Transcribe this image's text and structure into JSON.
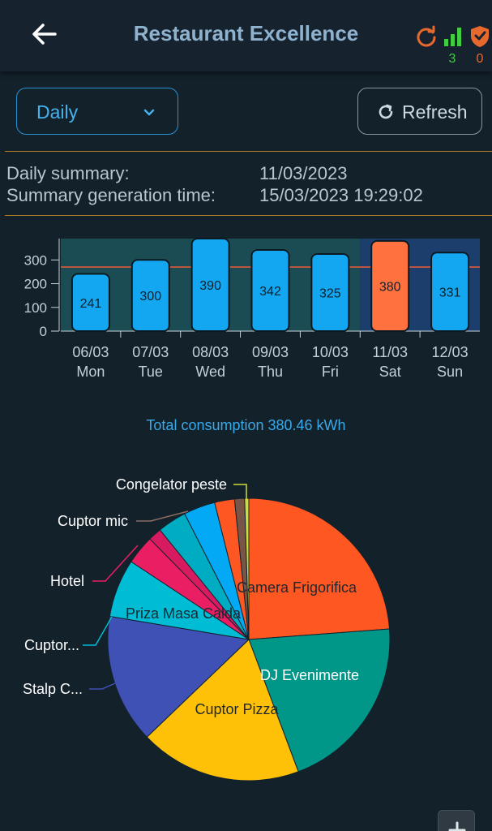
{
  "header": {
    "title": "Restaurant Excellence",
    "back_icon": "arrow-left-icon",
    "status": [
      {
        "icon": "sync-icon",
        "color": "#e8692e",
        "count": ""
      },
      {
        "icon": "signal-bars-icon",
        "color": "#3fcf3f",
        "count": "3"
      },
      {
        "icon": "shield-alert-icon",
        "color": "#e8692e",
        "count": "0"
      }
    ]
  },
  "controls": {
    "period_select": "Daily",
    "refresh_label": "Refresh"
  },
  "summary": {
    "daily_summary_label": "Daily summary:",
    "daily_summary_value": "11/03/2023",
    "generation_label": "Summary generation time:",
    "generation_value": "15/03/2023 19:29:02"
  },
  "total_consumption": "Total consumption 380.46 kWh",
  "colors": {
    "bar": "#13a7f2",
    "bar_selected": "#ff7240",
    "average_line": "#e05a3a"
  },
  "chart_data": [
    {
      "type": "bar",
      "categories": [
        "06/03 Mon",
        "07/03 Tue",
        "08/03 Wed",
        "09/03 Thu",
        "10/03 Fri",
        "11/03 Sat",
        "12/03 Sun"
      ],
      "dates": [
        "06/03",
        "07/03",
        "08/03",
        "09/03",
        "10/03",
        "11/03",
        "12/03"
      ],
      "days": [
        "Mon",
        "Tue",
        "Wed",
        "Thu",
        "Fri",
        "Sat",
        "Sun"
      ],
      "values": [
        241,
        300,
        390,
        342,
        325,
        380,
        331
      ],
      "data_labels": [
        "241",
        "300",
        "390",
        "342",
        "325",
        "380",
        "331"
      ],
      "selected_index": 5,
      "average_line": 270,
      "ylim": [
        0,
        390
      ],
      "yticks": [
        0,
        100,
        200,
        300
      ],
      "ytick_labels": [
        "0",
        "100",
        "200",
        "300"
      ],
      "title": "",
      "xlabel": "",
      "ylabel": ""
    },
    {
      "type": "pie",
      "slices": [
        {
          "label": "Camera Frigorifica",
          "value": 25.0,
          "color": "#ff5722"
        },
        {
          "label": "DJ Evenimente",
          "value": 21.5,
          "color": "#009688"
        },
        {
          "label": "Cuptor Pizza",
          "value": 19.5,
          "color": "#ffc107"
        },
        {
          "label": "Stalp C...",
          "value": 15.5,
          "color": "#3f51b5"
        },
        {
          "label": "Cuptor...",
          "value": 7.0,
          "color": "#00bcd4"
        },
        {
          "label": "Priza Masa Calda",
          "value": 0,
          "color": "#26c6da"
        },
        {
          "label": "Hotel",
          "value": 3.5,
          "color": "#e91e63"
        },
        {
          "label": "",
          "value": 1.6,
          "color": "#d81b60"
        },
        {
          "label": "",
          "value": 3.5,
          "color": "#00acc1"
        },
        {
          "label": "",
          "value": 3.8,
          "color": "#03a9f4"
        },
        {
          "label": "Cuptor mic",
          "value": 2.4,
          "color": "#ff5722"
        },
        {
          "label": "",
          "value": 1.2,
          "color": "#795548"
        },
        {
          "label": "Congelator peste",
          "value": 0.5,
          "color": "#cddc39"
        }
      ],
      "inside_labels": [
        "Camera Frigorifica",
        "DJ Evenimente",
        "Cuptor Pizza",
        "Priza Masa Calda"
      ],
      "outside_labels": [
        "Congelator peste",
        "Cuptor mic",
        "Hotel",
        "Cuptor...",
        "Stalp C..."
      ]
    }
  ]
}
